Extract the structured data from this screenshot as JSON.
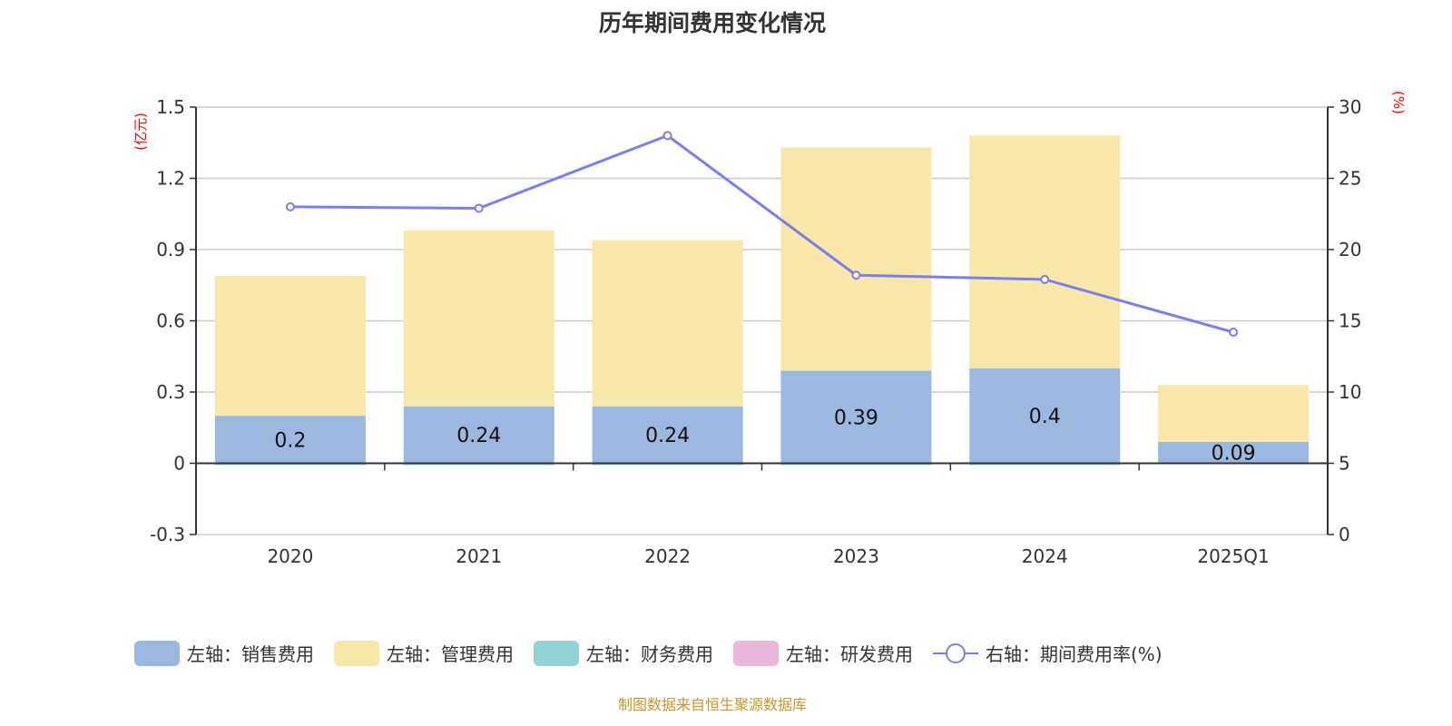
{
  "chart_data": {
    "type": "bar",
    "title": "历年期间费用变化情况",
    "categories": [
      "2020",
      "2021",
      "2022",
      "2023",
      "2024",
      "2025Q1"
    ],
    "left_axis": {
      "label": "(亿元)",
      "range": [
        -0.3,
        1.5
      ],
      "ticks": [
        "1.5",
        "1.2",
        "0.9",
        "0.6",
        "0.3",
        "0",
        "-0.3"
      ],
      "tick_values": [
        1.5,
        1.2,
        0.9,
        0.6,
        0.3,
        0,
        -0.3
      ]
    },
    "right_axis": {
      "label": "(%)",
      "range": [
        0,
        30
      ],
      "ticks": [
        "30",
        "25",
        "20",
        "15",
        "10",
        "5",
        "0"
      ],
      "tick_values": [
        30,
        25,
        20,
        15,
        10,
        5,
        0
      ]
    },
    "series": [
      {
        "name": "左轴：销售费用",
        "axis": "left",
        "stack": true,
        "color": "#9bb8e0",
        "values": [
          0.2,
          0.24,
          0.24,
          0.39,
          0.4,
          0.09
        ],
        "labels": [
          "0.2",
          "0.24",
          "0.24",
          "0.39",
          "0.4",
          "0.09"
        ]
      },
      {
        "name": "左轴：管理费用",
        "axis": "left",
        "stack": true,
        "color": "#f7e7a9",
        "values": [
          0.59,
          0.74,
          0.7,
          0.94,
          0.98,
          0.24
        ]
      },
      {
        "name": "左轴：财务费用",
        "axis": "left",
        "stack": true,
        "color": "#93d3d3",
        "values": [
          -0.005,
          -0.002,
          -0.005,
          -0.005,
          -0.005,
          0
        ]
      },
      {
        "name": "左轴：研发费用",
        "axis": "left",
        "stack": true,
        "color": "#e6b9d8",
        "values": [
          0,
          0,
          0,
          0,
          0,
          0
        ]
      },
      {
        "name": "右轴：期间费用率(%)",
        "axis": "right",
        "type": "line",
        "color": "#7b7ef0",
        "values": [
          23.0,
          22.9,
          28.0,
          18.2,
          17.9,
          14.2
        ]
      }
    ],
    "grid": true,
    "legend_position": "bottom"
  },
  "source": "制图数据来自恒生聚源数据库"
}
